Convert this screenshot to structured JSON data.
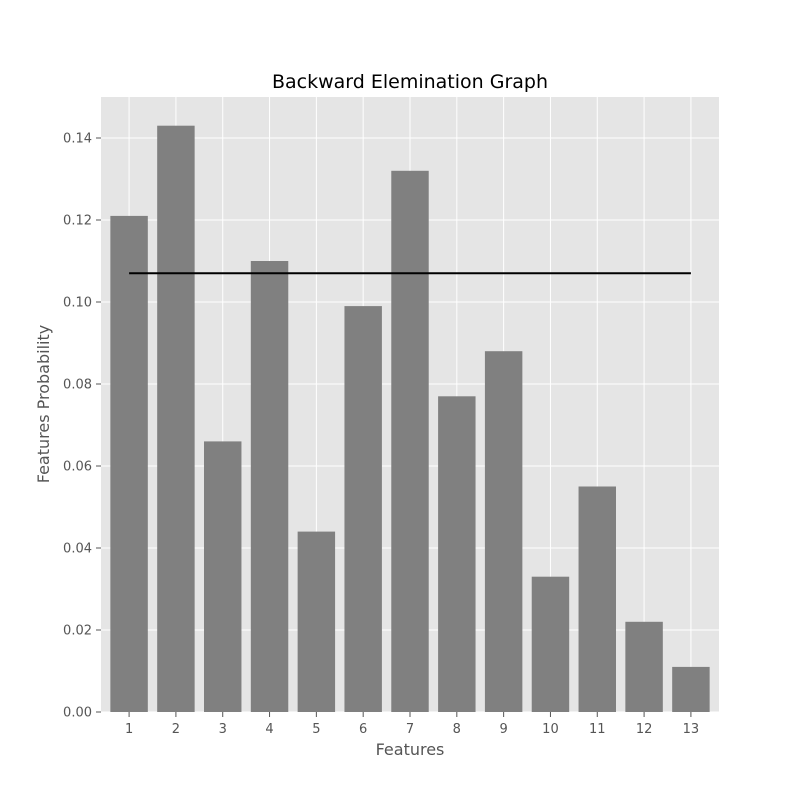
{
  "chart_data": {
    "type": "bar",
    "title": "Backward Elemination Graph",
    "xlabel": "Features",
    "ylabel": "Features Probability",
    "categories": [
      "1",
      "2",
      "3",
      "4",
      "5",
      "6",
      "7",
      "8",
      "9",
      "10",
      "11",
      "12",
      "13"
    ],
    "values": [
      0.121,
      0.143,
      0.066,
      0.11,
      0.044,
      0.099,
      0.132,
      0.077,
      0.088,
      0.033,
      0.055,
      0.022,
      0.011
    ],
    "threshold": 0.107,
    "ylim": [
      0,
      0.15
    ],
    "yticks": [
      "0.00",
      "0.02",
      "0.04",
      "0.06",
      "0.08",
      "0.10",
      "0.12",
      "0.14"
    ],
    "grid": true,
    "colors": {
      "plot_background": "#e5e5e5",
      "bar": "#808080",
      "grid": "#ffffff",
      "threshold_line": "#000000"
    }
  }
}
